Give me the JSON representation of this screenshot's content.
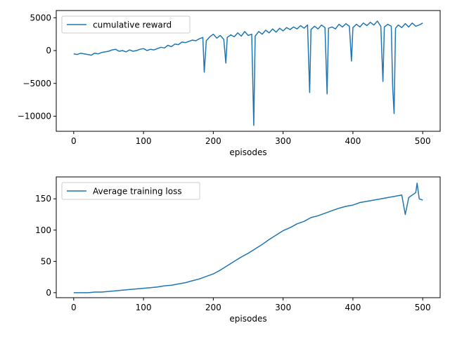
{
  "chart_data": [
    {
      "type": "line",
      "title": "",
      "xlabel": "episodes",
      "ylabel": "",
      "xlim": [
        -25,
        525
      ],
      "ylim": [
        -12300,
        6100
      ],
      "xticks": [
        0,
        100,
        200,
        300,
        400,
        500
      ],
      "yticks": [
        -10000,
        -5000,
        0,
        5000
      ],
      "legend_position": "upper left",
      "grid": false,
      "series": [
        {
          "name": "cumulative reward",
          "color": "#1f77b4",
          "x": [
            0,
            5,
            10,
            15,
            20,
            25,
            30,
            35,
            40,
            45,
            50,
            55,
            60,
            65,
            70,
            75,
            80,
            85,
            90,
            95,
            100,
            105,
            110,
            115,
            120,
            125,
            130,
            135,
            140,
            145,
            150,
            155,
            160,
            165,
            170,
            175,
            180,
            185,
            187,
            190,
            195,
            200,
            205,
            210,
            215,
            218,
            220,
            225,
            230,
            235,
            240,
            245,
            250,
            255,
            258,
            260,
            265,
            270,
            275,
            280,
            285,
            290,
            295,
            300,
            305,
            310,
            315,
            320,
            325,
            330,
            335,
            338,
            340,
            345,
            350,
            355,
            360,
            363,
            365,
            370,
            375,
            380,
            385,
            390,
            395,
            398,
            400,
            405,
            410,
            415,
            420,
            425,
            430,
            435,
            440,
            443,
            445,
            450,
            455,
            457,
            459,
            461,
            465,
            470,
            475,
            480,
            485,
            490,
            495,
            500
          ],
          "y": [
            -500,
            -600,
            -400,
            -500,
            -600,
            -700,
            -400,
            -500,
            -300,
            -200,
            -100,
            100,
            200,
            -100,
            0,
            -200,
            100,
            -100,
            0,
            200,
            300,
            0,
            200,
            100,
            300,
            500,
            400,
            800,
            600,
            1000,
            900,
            1300,
            1200,
            1400,
            1600,
            1500,
            1800,
            2000,
            -3300,
            1500,
            2100,
            2500,
            1900,
            2300,
            1700,
            -1900,
            2000,
            2400,
            2100,
            2700,
            2200,
            2900,
            2300,
            2500,
            -11400,
            2200,
            2900,
            2500,
            3100,
            2700,
            3300,
            2800,
            3400,
            3000,
            3500,
            3200,
            3600,
            3300,
            3800,
            3400,
            3900,
            -6400,
            3200,
            3700,
            3300,
            3900,
            3500,
            -6600,
            3400,
            3600,
            3300,
            4000,
            3600,
            4100,
            3700,
            -1600,
            3500,
            4000,
            3600,
            4200,
            3800,
            4300,
            3900,
            4500,
            3700,
            -4700,
            3600,
            4000,
            3700,
            -5700,
            -9600,
            3400,
            3900,
            3500,
            4100,
            3600,
            4200,
            3700,
            3900,
            4200
          ]
        }
      ]
    },
    {
      "type": "line",
      "title": "",
      "xlabel": "episodes",
      "ylabel": "",
      "xlim": [
        -25,
        525
      ],
      "ylim": [
        -8,
        185
      ],
      "xticks": [
        0,
        100,
        200,
        300,
        400,
        500
      ],
      "yticks": [
        0,
        50,
        100,
        150
      ],
      "legend_position": "upper left",
      "grid": false,
      "series": [
        {
          "name": "Average training loss",
          "color": "#1f77b4",
          "x": [
            0,
            10,
            20,
            30,
            40,
            50,
            60,
            70,
            80,
            90,
            100,
            110,
            120,
            130,
            140,
            150,
            160,
            170,
            180,
            190,
            200,
            210,
            220,
            230,
            240,
            250,
            260,
            270,
            280,
            290,
            300,
            310,
            320,
            330,
            340,
            350,
            360,
            370,
            380,
            390,
            400,
            410,
            420,
            430,
            440,
            450,
            460,
            470,
            475,
            480,
            490,
            492,
            495,
            500
          ],
          "y": [
            0,
            0,
            0,
            1,
            1,
            2,
            3,
            4,
            5,
            6,
            7,
            8,
            9,
            11,
            12,
            14,
            16,
            19,
            22,
            26,
            30,
            36,
            43,
            50,
            57,
            63,
            70,
            77,
            85,
            92,
            99,
            104,
            110,
            114,
            120,
            123,
            127,
            131,
            135,
            138,
            140,
            144,
            146,
            148,
            150,
            152,
            154,
            156,
            125,
            152,
            160,
            175,
            150,
            148
          ]
        }
      ]
    }
  ]
}
